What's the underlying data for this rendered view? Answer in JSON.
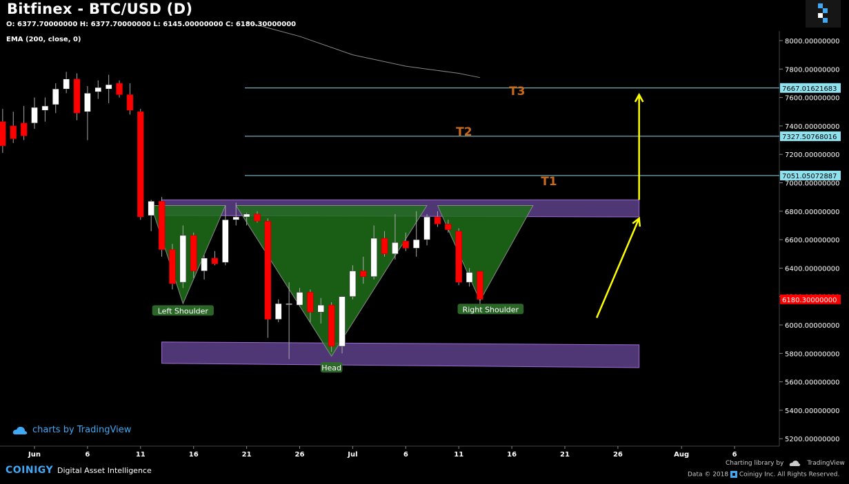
{
  "header": {
    "title": "Bitfinex - BTC/USD (D)",
    "ohlc": "O: 6377.70000000 H: 6377.70000000 L: 6145.00000000 C: 6180.30000000",
    "ema_label": "EMA (200, close, 0)"
  },
  "footer": {
    "tv_credit": "charts by TradingView",
    "brand": "COINIGY",
    "tagline": "Digital Asset Intelligence",
    "charting_library": "Charting library by",
    "tradingview": "TradingView",
    "data_notice": "Data © 2018",
    "copyright": "Coinigy Inc. All Rights Reserved."
  },
  "colors": {
    "background": "#000000",
    "bull": "#ffffff",
    "bear": "#ff0000",
    "zone": "#6a4a9c",
    "pattern": "#1f6e1a",
    "target_line": "#8fd8e6",
    "target_text": "#c8691b",
    "arrow": "#ffff00",
    "ema": "#888888",
    "last_price": "#ff0000"
  },
  "chart_data": {
    "type": "candlestick",
    "title": "Bitfinex - BTC/USD (D)",
    "ylim": [
      5100,
      8150
    ],
    "y_ticks": [
      "8000.00000000",
      "7800.00000000",
      "7600.00000000",
      "7400.00000000",
      "7200.00000000",
      "7000.00000000",
      "6800.00000000",
      "6600.00000000",
      "6400.00000000",
      "6200.00000000",
      "6000.00000000",
      "5800.00000000",
      "5600.00000000",
      "5400.00000000",
      "5200.00000000"
    ],
    "x_ticks": [
      {
        "label": "Jun",
        "day": 0
      },
      {
        "label": "6",
        "day": 5
      },
      {
        "label": "11",
        "day": 10
      },
      {
        "label": "16",
        "day": 15
      },
      {
        "label": "21",
        "day": 20
      },
      {
        "label": "26",
        "day": 25
      },
      {
        "label": "Jul",
        "day": 30
      },
      {
        "label": "6",
        "day": 35
      },
      {
        "label": "11",
        "day": 40
      },
      {
        "label": "16",
        "day": 45
      },
      {
        "label": "21",
        "day": 50
      },
      {
        "label": "26",
        "day": 55
      },
      {
        "label": "Aug",
        "day": 61
      },
      {
        "label": "6",
        "day": 66
      }
    ],
    "candles": [
      {
        "day": -3,
        "o": 7430,
        "h": 7520,
        "l": 7210,
        "c": 7260
      },
      {
        "day": -2,
        "o": 7400,
        "h": 7500,
        "l": 7280,
        "c": 7310
      },
      {
        "day": -1,
        "o": 7420,
        "h": 7540,
        "l": 7300,
        "c": 7330
      },
      {
        "day": 0,
        "o": 7420,
        "h": 7600,
        "l": 7380,
        "c": 7530
      },
      {
        "day": 1,
        "o": 7510,
        "h": 7600,
        "l": 7430,
        "c": 7540
      },
      {
        "day": 2,
        "o": 7550,
        "h": 7700,
        "l": 7490,
        "c": 7660
      },
      {
        "day": 3,
        "o": 7660,
        "h": 7780,
        "l": 7630,
        "c": 7730
      },
      {
        "day": 4,
        "o": 7730,
        "h": 7770,
        "l": 7440,
        "c": 7490
      },
      {
        "day": 5,
        "o": 7500,
        "h": 7680,
        "l": 7300,
        "c": 7630
      },
      {
        "day": 6,
        "o": 7640,
        "h": 7720,
        "l": 7590,
        "c": 7670
      },
      {
        "day": 7,
        "o": 7660,
        "h": 7760,
        "l": 7560,
        "c": 7690
      },
      {
        "day": 8,
        "o": 7700,
        "h": 7720,
        "l": 7600,
        "c": 7620
      },
      {
        "day": 9,
        "o": 7620,
        "h": 7700,
        "l": 7480,
        "c": 7510
      },
      {
        "day": 10,
        "o": 7500,
        "h": 7520,
        "l": 6740,
        "c": 6760
      },
      {
        "day": 11,
        "o": 6770,
        "h": 6880,
        "l": 6660,
        "c": 6870
      },
      {
        "day": 12,
        "o": 6870,
        "h": 6900,
        "l": 6480,
        "c": 6530
      },
      {
        "day": 13,
        "o": 6530,
        "h": 6570,
        "l": 6250,
        "c": 6290
      },
      {
        "day": 14,
        "o": 6300,
        "h": 6700,
        "l": 6260,
        "c": 6630
      },
      {
        "day": 15,
        "o": 6630,
        "h": 6650,
        "l": 6330,
        "c": 6380
      },
      {
        "day": 16,
        "o": 6380,
        "h": 6490,
        "l": 6320,
        "c": 6470
      },
      {
        "day": 17,
        "o": 6470,
        "h": 6520,
        "l": 6420,
        "c": 6430
      },
      {
        "day": 18,
        "o": 6440,
        "h": 6840,
        "l": 6420,
        "c": 6740
      },
      {
        "day": 19,
        "o": 6740,
        "h": 6860,
        "l": 6700,
        "c": 6760
      },
      {
        "day": 20,
        "o": 6760,
        "h": 6790,
        "l": 6700,
        "c": 6780
      },
      {
        "day": 21,
        "o": 6780,
        "h": 6800,
        "l": 6720,
        "c": 6730
      },
      {
        "day": 22,
        "o": 6730,
        "h": 6750,
        "l": 5910,
        "c": 6040
      },
      {
        "day": 23,
        "o": 6040,
        "h": 6180,
        "l": 6020,
        "c": 6150
      },
      {
        "day": 24,
        "o": 6150,
        "h": 6300,
        "l": 5760,
        "c": 6150
      },
      {
        "day": 25,
        "o": 6140,
        "h": 6260,
        "l": 6130,
        "c": 6230
      },
      {
        "day": 26,
        "o": 6230,
        "h": 6250,
        "l": 6020,
        "c": 6090
      },
      {
        "day": 27,
        "o": 6090,
        "h": 6190,
        "l": 6010,
        "c": 6140
      },
      {
        "day": 28,
        "o": 6140,
        "h": 6160,
        "l": 5810,
        "c": 5850
      },
      {
        "day": 29,
        "o": 5850,
        "h": 6200,
        "l": 5800,
        "c": 6200
      },
      {
        "day": 30,
        "o": 6200,
        "h": 6420,
        "l": 6180,
        "c": 6380
      },
      {
        "day": 31,
        "o": 6380,
        "h": 6480,
        "l": 6290,
        "c": 6340
      },
      {
        "day": 32,
        "o": 6340,
        "h": 6700,
        "l": 6320,
        "c": 6610
      },
      {
        "day": 33,
        "o": 6610,
        "h": 6660,
        "l": 6480,
        "c": 6500
      },
      {
        "day": 34,
        "o": 6500,
        "h": 6780,
        "l": 6460,
        "c": 6580
      },
      {
        "day": 35,
        "o": 6590,
        "h": 6650,
        "l": 6520,
        "c": 6540
      },
      {
        "day": 36,
        "o": 6540,
        "h": 6800,
        "l": 6480,
        "c": 6600
      },
      {
        "day": 37,
        "o": 6600,
        "h": 6780,
        "l": 6560,
        "c": 6760
      },
      {
        "day": 38,
        "o": 6760,
        "h": 6800,
        "l": 6690,
        "c": 6710
      },
      {
        "day": 39,
        "o": 6710,
        "h": 6740,
        "l": 6650,
        "c": 6670
      },
      {
        "day": 40,
        "o": 6660,
        "h": 6680,
        "l": 6280,
        "c": 6300
      },
      {
        "day": 41,
        "o": 6300,
        "h": 6400,
        "l": 6270,
        "c": 6370
      },
      {
        "day": 42,
        "o": 6377.7,
        "h": 6377.7,
        "l": 6145,
        "c": 6180.3
      }
    ],
    "ema": [
      {
        "day": 20,
        "value": 8130
      },
      {
        "day": 25,
        "value": 8030
      },
      {
        "day": 30,
        "value": 7900
      },
      {
        "day": 35,
        "value": 7820
      },
      {
        "day": 40,
        "value": 7770
      },
      {
        "day": 42,
        "value": 7740
      }
    ],
    "targets": [
      {
        "label": "T3",
        "value": 7667.01621683,
        "price_label": "7667.01621683"
      },
      {
        "label": "T2",
        "value": 7327.50768016,
        "price_label": "7327.50768016"
      },
      {
        "label": "T1",
        "value": 7051.05072887,
        "price_label": "7051.05072887"
      }
    ],
    "last_price": {
      "value": 6180.3,
      "label": "6180.30000000"
    },
    "zones": [
      {
        "name": "resistance",
        "x_start": 12,
        "x_end": 57,
        "top": 6880,
        "bottom": 6770,
        "top_end": 6880,
        "bottom_end": 6760
      },
      {
        "name": "support",
        "x_start": 12,
        "x_end": 57,
        "top": 5880,
        "bottom": 5730,
        "top_end": 5860,
        "bottom_end": 5700
      }
    ],
    "pattern": {
      "triangles": [
        {
          "name": "left-shoulder",
          "points": [
            [
              11,
              6840
            ],
            [
              18,
              6840
            ],
            [
              14,
              6150
            ]
          ]
        },
        {
          "name": "head",
          "points": [
            [
              19,
              6840
            ],
            [
              37,
              6840
            ],
            [
              28,
              5780
            ]
          ]
        },
        {
          "name": "right-shoulder",
          "points": [
            [
              38,
              6840
            ],
            [
              47,
              6840
            ],
            [
              42,
              6170
            ]
          ]
        }
      ],
      "labels": [
        {
          "text": "Left Shoulder",
          "day": 14,
          "value": 6100
        },
        {
          "text": "Head",
          "day": 28,
          "value": 5700
        },
        {
          "text": "Right Shoulder",
          "day": 43,
          "value": 6110
        }
      ]
    },
    "arrows": [
      {
        "name": "arrow-1",
        "from": [
          53,
          6050
        ],
        "to": [
          57,
          6750
        ]
      },
      {
        "name": "arrow-2",
        "from": [
          57,
          6880
        ],
        "to": [
          57,
          7620
        ]
      }
    ]
  }
}
